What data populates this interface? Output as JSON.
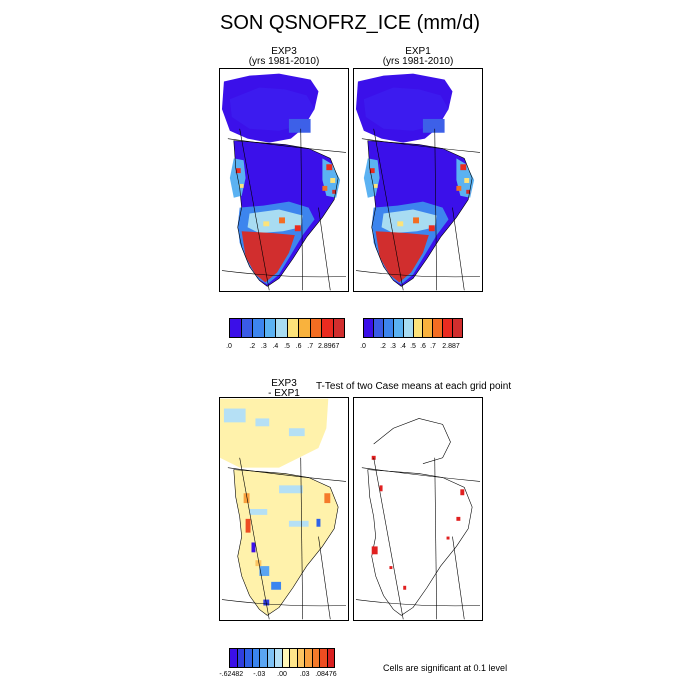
{
  "title": "SON QSNOFRZ_ICE (mm/d)",
  "panels": {
    "exp3": {
      "name": "EXP3",
      "years": "(yrs 1981-2010)"
    },
    "exp1": {
      "name": "EXP1",
      "years": "(yrs 1981-2010)"
    },
    "diff": {
      "line1": "EXP3",
      "line2": "- EXP1"
    },
    "ttest": {
      "title": "T-Test of two Case means at each grid point"
    }
  },
  "colorbars": {
    "exp3": {
      "colors": [
        "#3b0fe8",
        "#3a5be6",
        "#3d85ee",
        "#5bb2f2",
        "#a8dcf2",
        "#fde37a",
        "#f9b23d",
        "#f36d22",
        "#ea2b20",
        "#d12e2e"
      ],
      "labels": [
        ".0",
        ".2",
        ".3",
        ".4",
        ".5",
        ".6",
        ".7",
        "2.8967"
      ]
    },
    "exp1": {
      "colors": [
        "#3b0fe8",
        "#3a5be6",
        "#3d85ee",
        "#5bb2f2",
        "#a8dcf2",
        "#fde37a",
        "#f9b23d",
        "#f36d22",
        "#ea2b20",
        "#d12e2e"
      ],
      "labels": [
        ".0",
        ".2",
        ".3",
        ".4",
        ".5",
        ".6",
        ".7",
        "2.887"
      ]
    },
    "diff": {
      "colors": [
        "#3b0fe8",
        "#2f3ee0",
        "#2f62e8",
        "#3b85ef",
        "#5aa5f2",
        "#7fc2f4",
        "#b5e0f5",
        "#fff7b8",
        "#fee58b",
        "#fdc562",
        "#f9a03f",
        "#f57a2a",
        "#ee4d21",
        "#d92020"
      ],
      "labels": [
        "-.62482",
        "-.03",
        ".00",
        ".03",
        ".08476"
      ]
    }
  },
  "significance_note": "Cells are significant at 0.1 level"
}
